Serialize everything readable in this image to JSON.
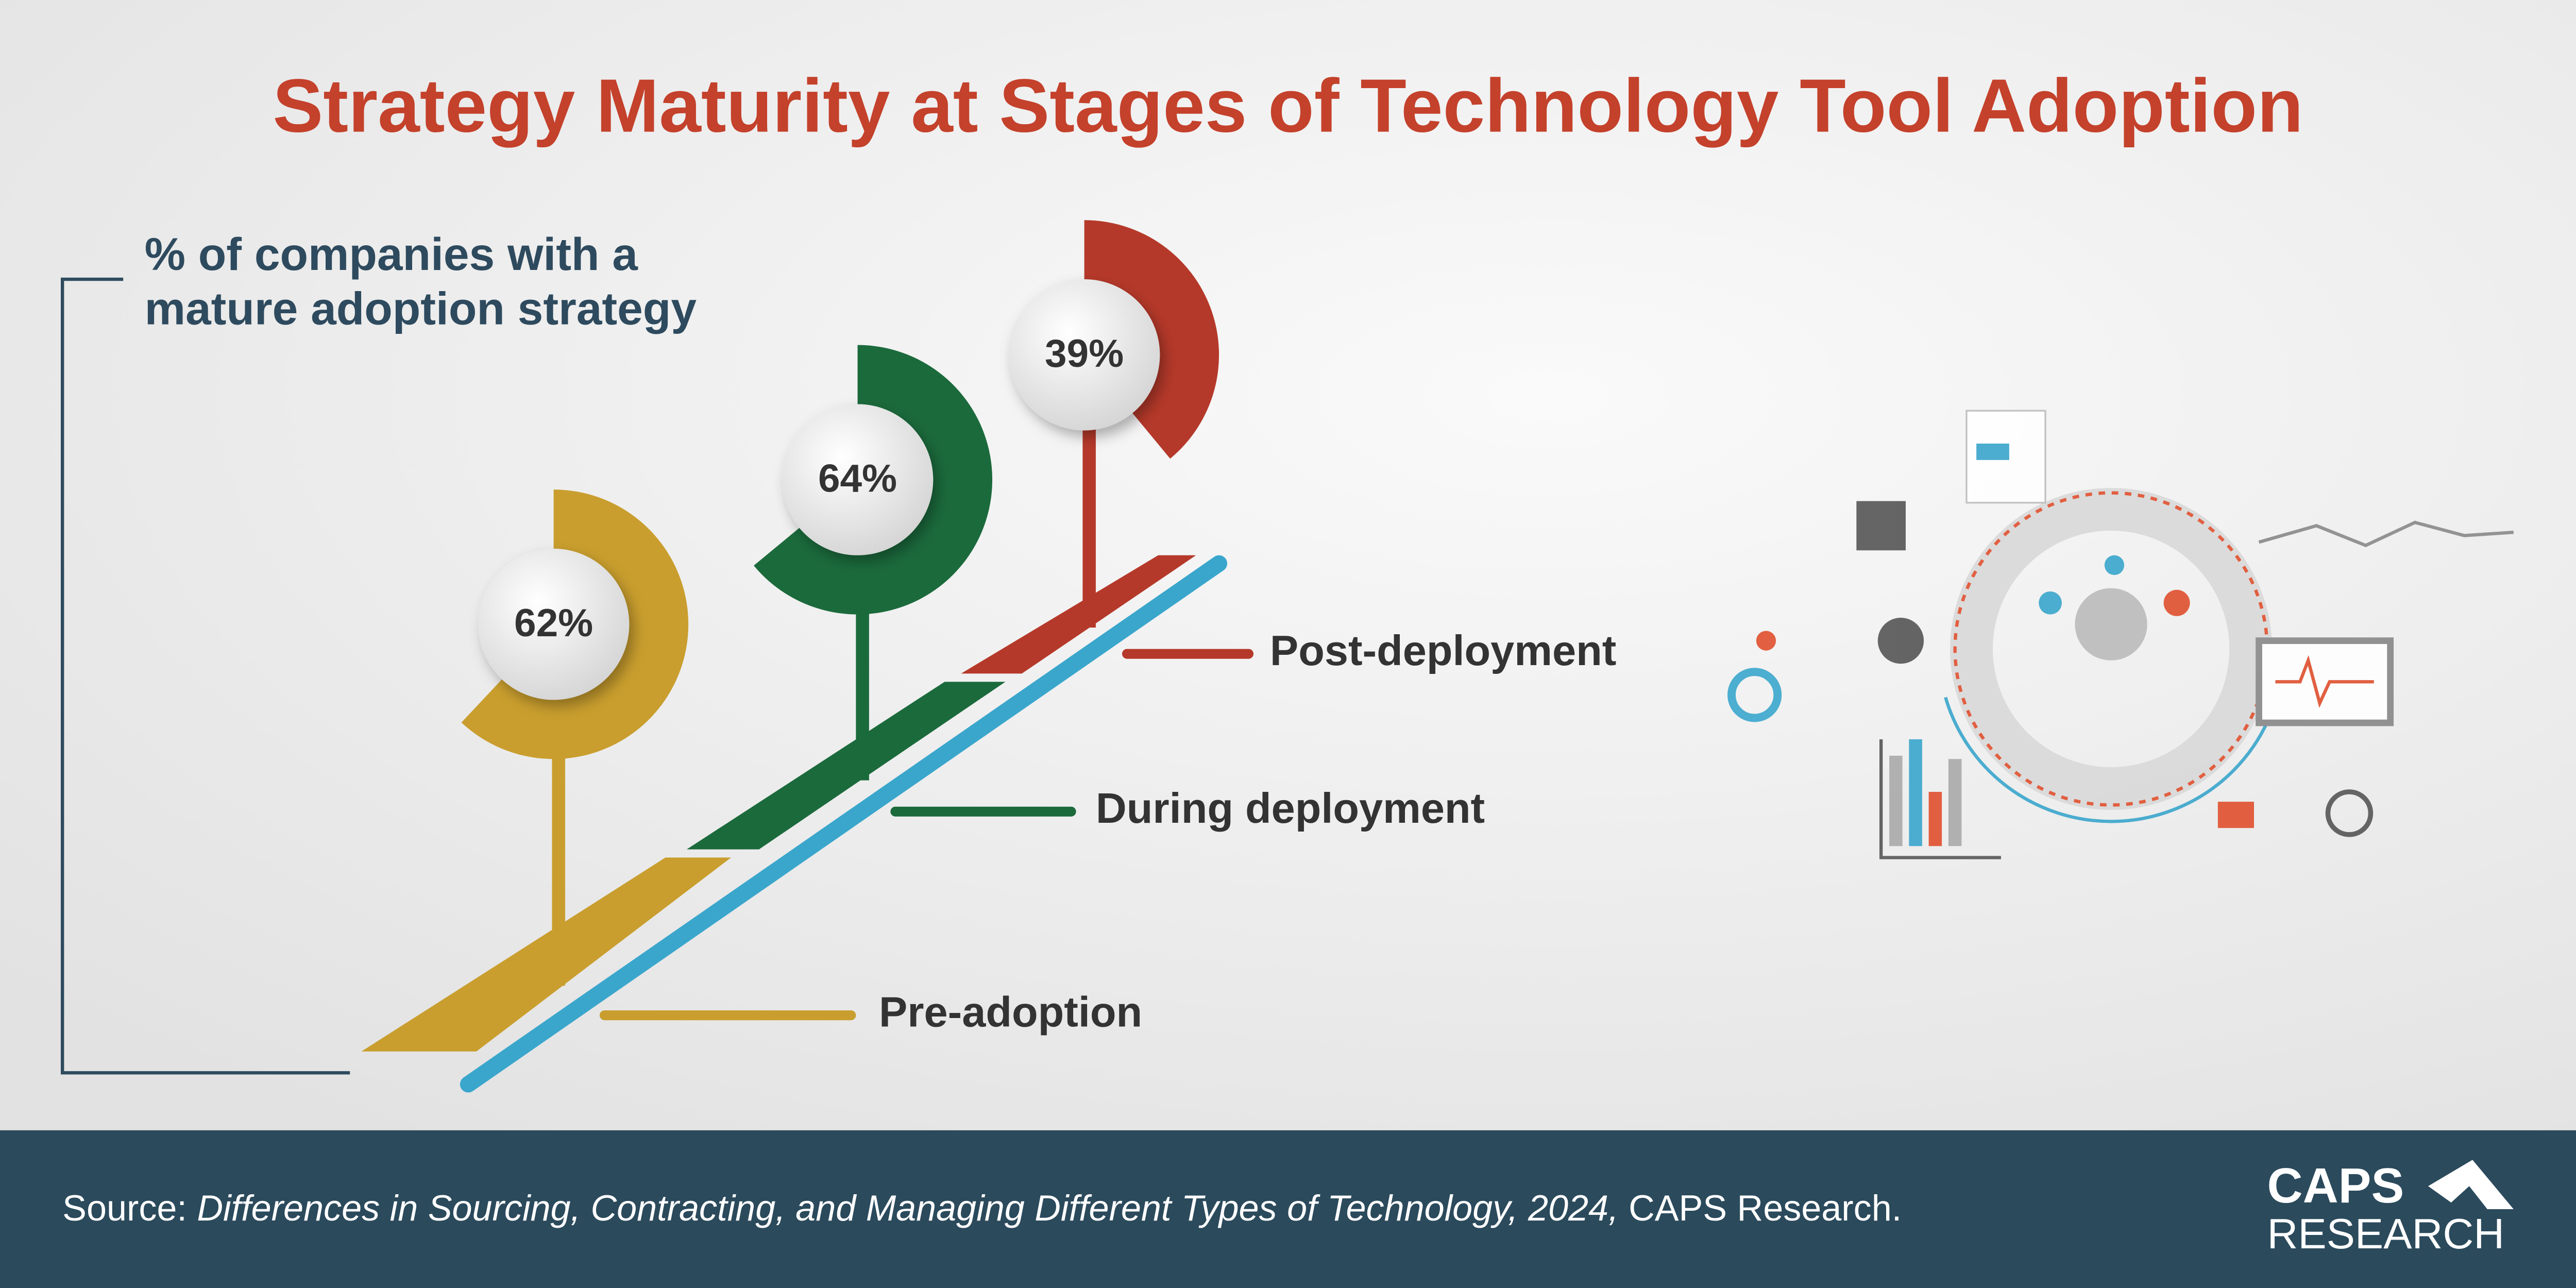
{
  "chart_data": {
    "type": "gauge",
    "title": "Strategy Maturity at Stages of Technology Tool Adoption",
    "subtitle": [
      "% of companies with a",
      "mature adoption strategy"
    ],
    "categories": [
      "Pre-adoption",
      "During deployment",
      "Post-deployment"
    ],
    "values": [
      62,
      64,
      39
    ],
    "value_labels": [
      "62%",
      "64%",
      "39%"
    ],
    "colors": [
      "#c99e2e",
      "#1b6a3c",
      "#b5392a"
    ]
  },
  "footer": {
    "source_prefix": "Source:",
    "source_title": "Differences in Sourcing, Contracting, and Managing Different Types of Technology, 2024,",
    "source_suffix": "CAPS Research.",
    "logo": [
      "CAPS",
      "RESEARCH"
    ]
  }
}
